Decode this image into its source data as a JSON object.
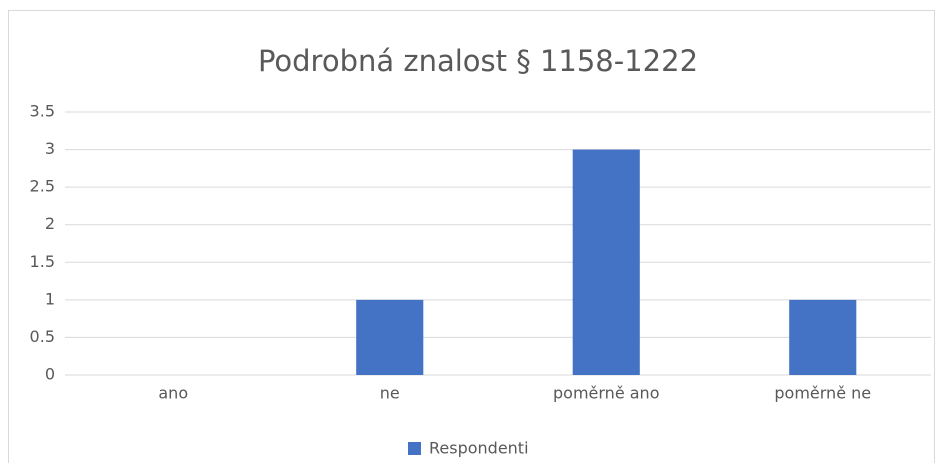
{
  "chart_data": {
    "type": "bar",
    "title": "Podrobná znalost § 1158-1222",
    "categories": [
      "ano",
      "ne",
      "poměrně ano",
      "poměrně ne"
    ],
    "series": [
      {
        "name": "Respondenti",
        "color": "#4472c4",
        "values": [
          0,
          1,
          3,
          1
        ]
      }
    ],
    "ylim": [
      0,
      3.5
    ],
    "yticks": [
      0,
      0.5,
      1,
      1.5,
      2,
      2.5,
      3,
      3.5
    ],
    "grid": true,
    "legend": "bottom"
  }
}
